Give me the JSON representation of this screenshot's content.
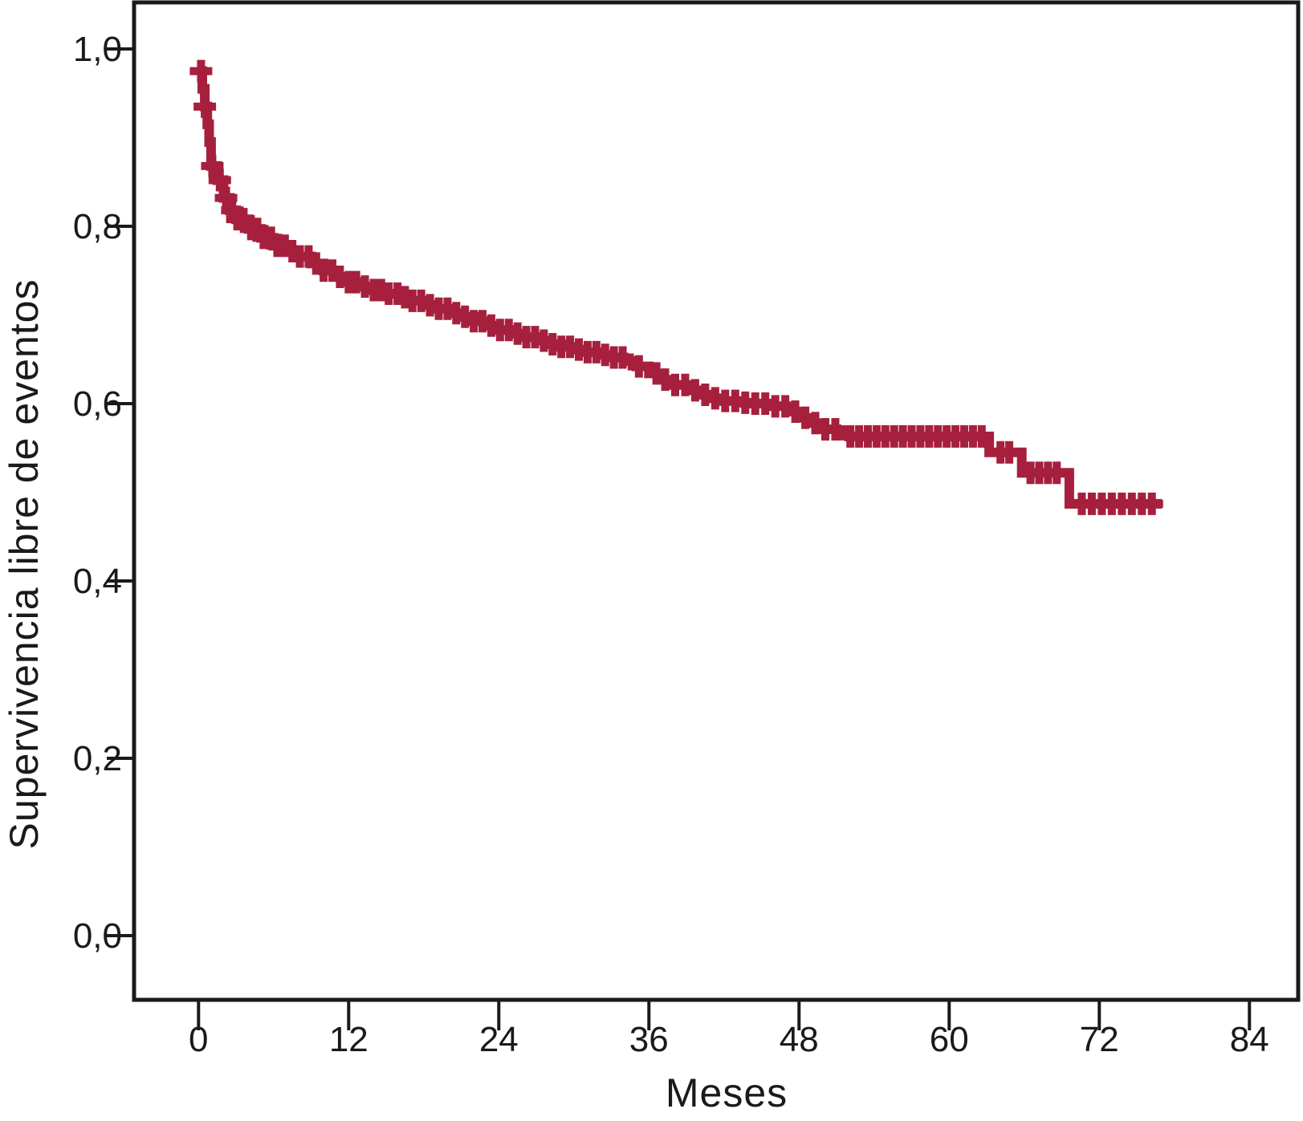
{
  "figure": {
    "background_color": "#ffffff",
    "text_color": "#1a1a1a",
    "axis_color": "#1a1a1a"
  },
  "chart_data": {
    "type": "line",
    "subtype": "kaplan-meier-step-curve",
    "title": "",
    "xlabel": "Meses",
    "ylabel": "Supervivencia libre de eventos",
    "grid": false,
    "legend": "none",
    "xlim": [
      -5.2,
      87.9
    ],
    "ylim": [
      -0.072,
      1.052
    ],
    "x_ticks": [
      {
        "value": 0,
        "label": "0"
      },
      {
        "value": 12,
        "label": "12"
      },
      {
        "value": 24,
        "label": "24"
      },
      {
        "value": 36,
        "label": "36"
      },
      {
        "value": 48,
        "label": "48"
      },
      {
        "value": 60,
        "label": "60"
      },
      {
        "value": 72,
        "label": "72"
      },
      {
        "value": 84,
        "label": "84"
      }
    ],
    "y_ticks": [
      {
        "value": 1.0,
        "label": "1,0"
      },
      {
        "value": 0.8,
        "label": "0,8"
      },
      {
        "value": 0.6,
        "label": "0,6"
      },
      {
        "value": 0.4,
        "label": "0,4"
      },
      {
        "value": 0.2,
        "label": "0,2"
      },
      {
        "value": 0.0,
        "label": "0,0"
      }
    ],
    "series": [
      {
        "name": "Supervivencia libre de eventos",
        "color": "#A6203E",
        "line_width": 12,
        "censor_mark": "plus",
        "censor_mark_size": 28,
        "steps_t_s": [
          [
            0,
            0.975
          ],
          [
            0.3,
            0.955
          ],
          [
            0.5,
            0.935
          ],
          [
            0.7,
            0.915
          ],
          [
            0.85,
            0.895
          ],
          [
            1,
            0.868
          ],
          [
            1.5,
            0.852
          ],
          [
            2,
            0.832
          ],
          [
            2.5,
            0.818
          ],
          [
            3,
            0.808
          ],
          [
            4,
            0.797
          ],
          [
            5,
            0.787
          ],
          [
            6,
            0.778
          ],
          [
            7,
            0.772
          ],
          [
            8,
            0.766
          ],
          [
            9,
            0.758
          ],
          [
            10,
            0.75
          ],
          [
            11,
            0.743
          ],
          [
            12,
            0.737
          ],
          [
            13,
            0.732
          ],
          [
            14,
            0.728
          ],
          [
            15,
            0.724
          ],
          [
            16,
            0.72
          ],
          [
            17,
            0.716
          ],
          [
            18,
            0.711
          ],
          [
            19,
            0.707
          ],
          [
            20,
            0.702
          ],
          [
            21,
            0.698
          ],
          [
            22,
            0.693
          ],
          [
            23,
            0.688
          ],
          [
            24,
            0.683
          ],
          [
            25,
            0.679
          ],
          [
            26,
            0.675
          ],
          [
            27,
            0.671
          ],
          [
            28,
            0.667
          ],
          [
            29,
            0.664
          ],
          [
            30,
            0.661
          ],
          [
            31,
            0.658
          ],
          [
            32,
            0.655
          ],
          [
            33,
            0.652
          ],
          [
            34,
            0.648
          ],
          [
            35,
            0.642
          ],
          [
            36,
            0.634
          ],
          [
            37,
            0.627
          ],
          [
            38,
            0.621
          ],
          [
            39,
            0.615
          ],
          [
            40,
            0.61
          ],
          [
            41,
            0.606
          ],
          [
            42,
            0.603
          ],
          [
            43,
            0.601
          ],
          [
            44,
            0.6
          ],
          [
            46,
            0.597
          ],
          [
            47,
            0.591
          ],
          [
            48,
            0.584
          ],
          [
            49,
            0.578
          ],
          [
            50,
            0.571
          ],
          [
            51,
            0.566
          ],
          [
            52,
            0.563
          ],
          [
            63.2,
            0.545
          ],
          [
            65.8,
            0.522
          ],
          [
            69.6,
            0.487
          ],
          [
            77,
            0.487
          ]
        ],
        "censor_times": [
          0.2,
          0.5,
          1.1,
          1.7,
          2.2,
          2.7,
          3.1,
          3.6,
          4.2,
          4.7,
          5.2,
          5.8,
          6.3,
          6.9,
          7.5,
          8.1,
          8.8,
          9.4,
          10.0,
          10.7,
          11.3,
          12.0,
          12.6,
          13.3,
          14.0,
          14.6,
          15.2,
          15.9,
          16.5,
          17.1,
          17.8,
          18.5,
          19.2,
          19.9,
          20.6,
          21.3,
          22.0,
          22.7,
          23.4,
          24.1,
          24.8,
          25.5,
          26.2,
          26.9,
          27.6,
          28.3,
          29.0,
          29.7,
          30.4,
          31.1,
          31.8,
          32.5,
          33.2,
          33.9,
          35.2,
          36.6,
          37.3,
          38.1,
          38.9,
          39.7,
          40.5,
          41.3,
          42.1,
          42.9,
          43.7,
          44.5,
          45.3,
          46.1,
          46.9,
          47.7,
          48.5,
          49.3,
          50.1,
          50.9,
          52.1,
          52.8,
          53.5,
          54.2,
          54.9,
          55.6,
          56.3,
          57.0,
          57.7,
          58.4,
          59.1,
          59.8,
          60.5,
          61.2,
          61.9,
          62.6,
          64.1,
          64.8,
          66.5,
          67.2,
          67.9,
          68.6,
          70.6,
          71.4,
          72.2,
          73.0,
          73.8,
          74.6,
          75.4,
          76.2
        ]
      }
    ]
  }
}
